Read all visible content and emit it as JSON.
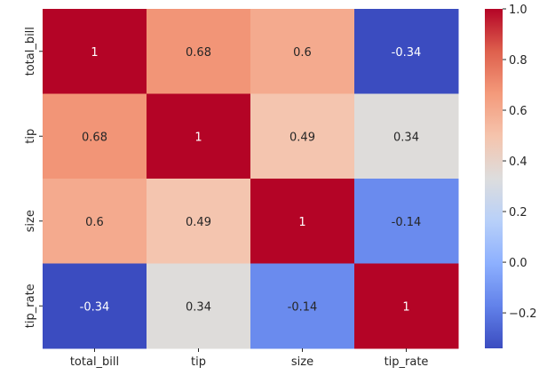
{
  "chart_data": {
    "type": "heatmap",
    "title": "",
    "xlabel": "",
    "ylabel": "",
    "x_categories": [
      "total_bill",
      "tip",
      "size",
      "tip_rate"
    ],
    "y_categories": [
      "total_bill",
      "tip",
      "size",
      "tip_rate"
    ],
    "values": [
      [
        1,
        0.68,
        0.6,
        -0.34
      ],
      [
        0.68,
        1,
        0.49,
        0.34
      ],
      [
        0.6,
        0.49,
        1,
        -0.14
      ],
      [
        -0.34,
        0.34,
        -0.14,
        1
      ]
    ],
    "annotations": [
      [
        "1",
        "0.68",
        "0.6",
        "-0.34"
      ],
      [
        "0.68",
        "1",
        "0.49",
        "0.34"
      ],
      [
        "0.6",
        "0.49",
        "1",
        "-0.14"
      ],
      [
        "-0.34",
        "0.34",
        "-0.14",
        "1"
      ]
    ],
    "colormap": "coolwarm",
    "colorbar": {
      "range": [
        -0.34,
        1.0
      ],
      "ticks": [
        1.0,
        0.8,
        0.6,
        0.4,
        0.2,
        0.0,
        -0.2
      ],
      "tick_labels": [
        "1.0",
        "0.8",
        "0.6",
        "0.4",
        "0.2",
        "0.0",
        "−0.2"
      ]
    },
    "colormap_stops": [
      "#3b4cc0",
      "#6282ea",
      "#8db0fe",
      "#b8d0f9",
      "#dddddd",
      "#f5c4ad",
      "#f49a7b",
      "#de604d",
      "#b40426"
    ]
  }
}
